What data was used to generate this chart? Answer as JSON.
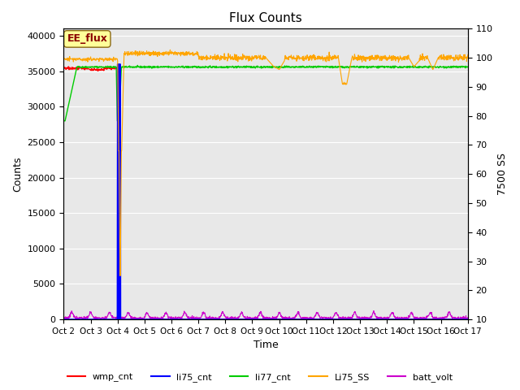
{
  "title": "Flux Counts",
  "xlabel": "Time",
  "ylabel_left": "Counts",
  "ylabel_right": "7500 SS",
  "left_ylim": [
    0,
    41000
  ],
  "right_ylim": [
    10,
    110
  ],
  "left_yticks": [
    0,
    5000,
    10000,
    15000,
    20000,
    25000,
    30000,
    35000,
    40000
  ],
  "right_yticks": [
    10,
    20,
    30,
    40,
    50,
    60,
    70,
    80,
    90,
    100,
    110
  ],
  "x_tick_labels": [
    "Oct 2",
    "Oct 3",
    "Oct 4",
    "Oct 5",
    "Oct 6",
    "Oct 7",
    "Oct 8",
    "Oct 9",
    "Oct 10",
    "Oct 11",
    "Oct 12",
    "Oct 13",
    "Oct 14",
    "Oct 15",
    "Oct 16",
    "Oct 17"
  ],
  "bg_color": "#e8e8e8",
  "annotation_text": "EE_flux",
  "annotation_color": "#8B0000",
  "annotation_bg": "#ffff99",
  "figsize": [
    6.4,
    4.8
  ],
  "dpi": 100,
  "legend_items": [
    {
      "label": "wmp_cnt",
      "color": "#ff0000"
    },
    {
      "label": "li75_cnt",
      "color": "#0000ff"
    },
    {
      "label": "li77_cnt",
      "color": "#00cc00"
    },
    {
      "label": "Li75_SS",
      "color": "#ffa500"
    },
    {
      "label": "batt_volt",
      "color": "#cc00cc"
    }
  ]
}
